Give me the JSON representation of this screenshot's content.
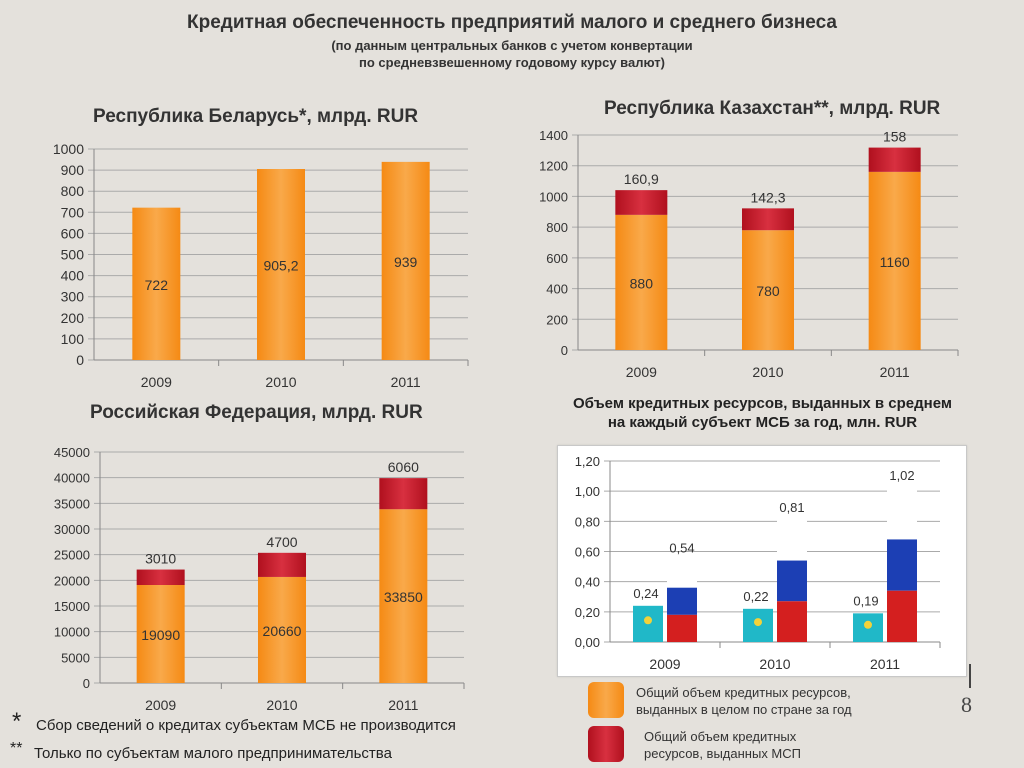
{
  "header": {
    "title": "Кредитная обеспеченность предприятий малого и среднего бизнеса",
    "subtitle_line1": "(по данным центральных банков с учетом конвертации",
    "subtitle_line2": "по средневзвешенному годовому курсу валют)"
  },
  "colors": {
    "orange": "#f58a14",
    "orange_light": "#f9a94a",
    "red": "#b0101e",
    "red_light": "#d83040",
    "blue": "#1c3fb4",
    "kz": "#20b8c8",
    "grid": "#aaaaaa"
  },
  "chart_data": [
    {
      "id": "belarus",
      "type": "bar",
      "title": "Республика Беларусь*, млрд. RUR",
      "categories": [
        "2009",
        "2010",
        "2011"
      ],
      "series": [
        {
          "name": "Общий объем кредитных ресурсов, выданных в целом по стране за год",
          "values": [
            722,
            905.2,
            939
          ]
        }
      ],
      "value_labels": [
        "722",
        "905,2",
        "939"
      ],
      "ylim": [
        0,
        1000
      ],
      "yticks": [
        0,
        100,
        200,
        300,
        400,
        500,
        600,
        700,
        800,
        900,
        1000
      ],
      "ytick_labels": [
        "0",
        "100",
        "200",
        "300",
        "400",
        "500",
        "600",
        "700",
        "800",
        "900",
        "1000"
      ],
      "grid": true
    },
    {
      "id": "kazakhstan",
      "type": "bar",
      "stacked": true,
      "title": "Республика Казахстан**, млрд. RUR",
      "categories": [
        "2009",
        "2010",
        "2011"
      ],
      "series": [
        {
          "name": "Общий объем кредитных ресурсов, выданных в целом по стране за год",
          "values": [
            880,
            780,
            1160
          ],
          "labels": [
            "880",
            "780",
            "1160"
          ]
        },
        {
          "name": "Общий объем кредитных ресурсов, выданных МСП",
          "values": [
            160.9,
            142.3,
            158
          ],
          "labels": [
            "160,9",
            "142,3",
            "158"
          ]
        }
      ],
      "ylim": [
        0,
        1400
      ],
      "yticks": [
        0,
        200,
        400,
        600,
        800,
        1000,
        1200,
        1400
      ],
      "ytick_labels": [
        "0",
        "200",
        "400",
        "600",
        "800",
        "1000",
        "1200",
        "1400"
      ],
      "grid": true
    },
    {
      "id": "russia",
      "type": "bar",
      "stacked": true,
      "title": "Российская Федерация, млрд. RUR",
      "categories": [
        "2009",
        "2010",
        "2011"
      ],
      "series": [
        {
          "name": "Общий объем кредитных ресурсов, выданных в целом по стране за год",
          "values": [
            19090,
            20660,
            33850
          ],
          "labels": [
            "19090",
            "20660",
            "33850"
          ]
        },
        {
          "name": "Общий объем кредитных ресурсов, выданных МСП",
          "values": [
            3010,
            4700,
            6060
          ],
          "labels": [
            "3010",
            "4700",
            "6060"
          ]
        }
      ],
      "ylim": [
        0,
        45000
      ],
      "yticks": [
        0,
        5000,
        10000,
        15000,
        20000,
        25000,
        30000,
        35000,
        40000,
        45000
      ],
      "ytick_labels": [
        "0",
        "5000",
        "10000",
        "15000",
        "20000",
        "25000",
        "30000",
        "35000",
        "40000",
        "45000"
      ],
      "grid": true
    },
    {
      "id": "per_entity",
      "type": "bar",
      "title": "Объем кредитных ресурсов, выданных в среднем на каждый субъект МСБ за год, млн. RUR",
      "title_line1": "Объем кредитных ресурсов, выданных в среднем",
      "title_line2": "на каждый субъект МСБ за год, млн. RUR",
      "categories": [
        "2009",
        "2010",
        "2011"
      ],
      "series": [
        {
          "name": "Республика Казахстан",
          "values": [
            0.24,
            0.22,
            0.19
          ],
          "labels": [
            "0,24",
            "0,22",
            "0,19"
          ]
        },
        {
          "name": "Российская Федерация",
          "values": [
            0.54,
            0.81,
            1.02
          ],
          "labels": [
            "0,54",
            "0,81",
            "1,02"
          ]
        }
      ],
      "ylim": [
        0,
        1.2
      ],
      "yticks": [
        0,
        0.2,
        0.4,
        0.6,
        0.8,
        1.0,
        1.2
      ],
      "ytick_labels": [
        "0,00",
        "0,20",
        "0,40",
        "0,60",
        "0,80",
        "1,00",
        "1,20"
      ],
      "grid": true
    }
  ],
  "legend": [
    {
      "label_line1": "Общий объем кредитных ресурсов,",
      "label_line2": "выданных в целом по стране за год",
      "color": "#f58a14"
    },
    {
      "label_line1": "Общий объем кредитных",
      "label_line2": "ресурсов, выданных МСП",
      "color": "#b0101e"
    }
  ],
  "footnotes": {
    "f1_mark": "*",
    "f1_text": "Сбор сведений о кредитах субъектам МСБ не производится",
    "f2_mark": "**",
    "f2_text": "Только по субъектам малого предпринимательства"
  },
  "page_number": "8"
}
